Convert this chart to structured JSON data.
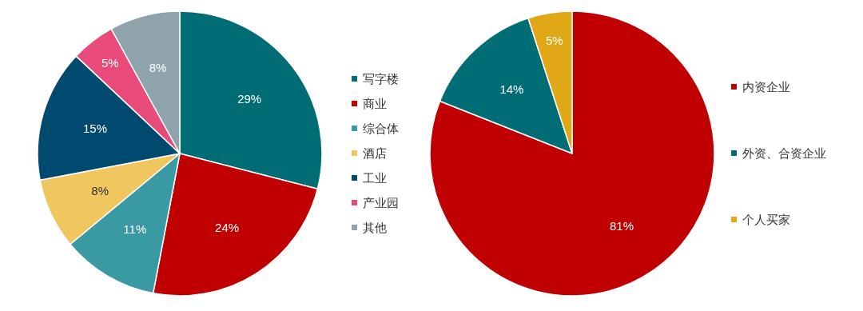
{
  "chart_data": [
    {
      "type": "pie",
      "categories": [
        "写字楼",
        "商业",
        "综合体",
        "酒店",
        "工业",
        "产业园",
        "其他"
      ],
      "values": [
        29,
        24,
        11,
        8,
        15,
        5,
        8
      ],
      "value_labels": [
        "29%",
        "24%",
        "11%",
        "8%",
        "15%",
        "5%",
        "8%"
      ],
      "colors": [
        "#006d75",
        "#c00000",
        "#3a9aa3",
        "#f0c75e",
        "#004a70",
        "#e84a7a",
        "#8fa3ac"
      ],
      "legend": "right"
    },
    {
      "type": "pie",
      "categories": [
        "内资企业",
        "外资、合资企业",
        "个人买家"
      ],
      "values": [
        81,
        14,
        5
      ],
      "value_labels": [
        "81%",
        "14%",
        "5%"
      ],
      "colors": [
        "#c00000",
        "#006d75",
        "#e0a817"
      ],
      "legend": "right"
    }
  ]
}
